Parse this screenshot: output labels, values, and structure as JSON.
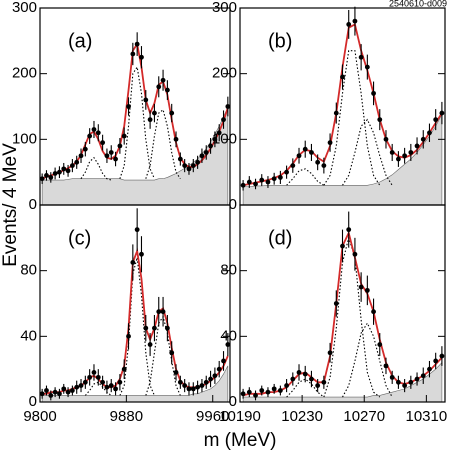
{
  "figure_id": "2540610-d009",
  "xlabel": "m (MeV)",
  "ylabel": "Events/ 4 MeV",
  "chart_data": [
    {
      "type": "errorbar",
      "label": "(a)",
      "xlim": [
        9800,
        9976
      ],
      "ylim": [
        0,
        300
      ],
      "yticks": [
        0,
        100,
        200,
        300
      ],
      "marker_color": "#000000",
      "fit_color": "#d42a2a",
      "background_color": "#d9d9d9",
      "component_color": "#000000",
      "x": [
        9802,
        9806,
        9810,
        9814,
        9818,
        9822,
        9826,
        9830,
        9834,
        9838,
        9842,
        9846,
        9850,
        9854,
        9858,
        9862,
        9866,
        9870,
        9874,
        9878,
        9882,
        9886,
        9890,
        9894,
        9898,
        9902,
        9906,
        9910,
        9914,
        9918,
        9922,
        9926,
        9930,
        9934,
        9938,
        9942,
        9946,
        9950,
        9954,
        9958,
        9962,
        9966,
        9970,
        9974
      ],
      "values": [
        40,
        45,
        42,
        48,
        50,
        55,
        52,
        60,
        65,
        75,
        85,
        105,
        115,
        110,
        95,
        75,
        80,
        70,
        90,
        105,
        150,
        230,
        245,
        225,
        160,
        130,
        140,
        180,
        190,
        175,
        140,
        100,
        70,
        60,
        55,
        60,
        65,
        75,
        80,
        90,
        100,
        110,
        130,
        150
      ],
      "errors": [
        8,
        8,
        8,
        9,
        9,
        9,
        9,
        10,
        10,
        11,
        11,
        12,
        13,
        13,
        12,
        11,
        11,
        11,
        12,
        13,
        14,
        17,
        18,
        17,
        15,
        14,
        14,
        16,
        16,
        15,
        14,
        12,
        10,
        10,
        9,
        10,
        10,
        11,
        11,
        12,
        12,
        13,
        14,
        15
      ],
      "fit": [
        40,
        43,
        45,
        47,
        50,
        53,
        56,
        60,
        66,
        76,
        92,
        108,
        112,
        100,
        82,
        72,
        70,
        75,
        90,
        120,
        175,
        235,
        245,
        210,
        160,
        140,
        155,
        183,
        188,
        168,
        130,
        95,
        72,
        62,
        58,
        58,
        62,
        68,
        76,
        86,
        98,
        112,
        128,
        148
      ],
      "background": [
        38,
        38,
        38,
        38,
        38,
        38,
        39,
        40,
        40,
        40,
        40,
        40,
        40,
        40,
        40,
        40,
        40,
        40,
        40,
        38,
        38,
        38,
        38,
        38,
        38,
        38,
        38,
        40,
        40,
        42,
        45,
        48,
        52,
        56,
        60,
        65,
        70,
        78,
        86,
        96,
        108,
        120,
        135,
        148
      ],
      "components": [
        {
          "x": [
            9838,
            9842,
            9846,
            9850,
            9854,
            9858,
            9862,
            9866
          ],
          "values": [
            40,
            50,
            66,
            72,
            62,
            48,
            40,
            38
          ]
        },
        {
          "x": [
            9874,
            9878,
            9882,
            9886,
            9890,
            9894,
            9898,
            9902,
            9906
          ],
          "values": [
            40,
            60,
            120,
            200,
            210,
            170,
            100,
            55,
            40
          ]
        },
        {
          "x": [
            9898,
            9902,
            9906,
            9910,
            9914,
            9918,
            9922,
            9926,
            9930
          ],
          "values": [
            40,
            60,
            105,
            140,
            145,
            120,
            80,
            50,
            40
          ]
        }
      ]
    },
    {
      "type": "errorbar",
      "label": "(b)",
      "xlim": [
        10190,
        10322
      ],
      "ylim": [
        0,
        300
      ],
      "yticks": [
        0,
        100,
        200,
        300
      ],
      "marker_color": "#000000",
      "fit_color": "#d42a2a",
      "background_color": "#d9d9d9",
      "component_color": "#000000",
      "x": [
        10192,
        10196,
        10200,
        10204,
        10208,
        10212,
        10216,
        10220,
        10224,
        10228,
        10232,
        10236,
        10240,
        10244,
        10248,
        10252,
        10256,
        10260,
        10264,
        10268,
        10272,
        10276,
        10280,
        10284,
        10288,
        10292,
        10296,
        10300,
        10304,
        10308,
        10312,
        10316,
        10320
      ],
      "values": [
        30,
        35,
        32,
        38,
        35,
        40,
        42,
        50,
        60,
        75,
        85,
        80,
        65,
        60,
        95,
        140,
        195,
        275,
        280,
        225,
        210,
        170,
        130,
        100,
        80,
        70,
        75,
        80,
        90,
        100,
        110,
        130,
        140
      ],
      "errors": [
        8,
        9,
        8,
        9,
        9,
        9,
        10,
        10,
        11,
        12,
        13,
        13,
        12,
        12,
        14,
        16,
        19,
        22,
        22,
        20,
        19,
        18,
        16,
        14,
        13,
        12,
        12,
        13,
        13,
        14,
        14,
        16,
        17
      ],
      "fit": [
        30,
        32,
        34,
        36,
        38,
        41,
        45,
        52,
        63,
        76,
        84,
        82,
        72,
        66,
        90,
        140,
        210,
        270,
        275,
        235,
        205,
        170,
        130,
        100,
        82,
        74,
        72,
        76,
        84,
        96,
        110,
        125,
        140
      ],
      "background": [
        28,
        28,
        29,
        29,
        30,
        30,
        30,
        30,
        30,
        30,
        30,
        30,
        30,
        30,
        30,
        30,
        30,
        30,
        30,
        30,
        30,
        32,
        35,
        40,
        46,
        54,
        62,
        70,
        80,
        92,
        105,
        120,
        138
      ],
      "components": [
        {
          "x": [
            10220,
            10224,
            10228,
            10232,
            10236,
            10240,
            10244
          ],
          "values": [
            30,
            40,
            52,
            55,
            48,
            36,
            30
          ]
        },
        {
          "x": [
            10244,
            10248,
            10252,
            10256,
            10260,
            10264,
            10268,
            10272,
            10276,
            10280
          ],
          "values": [
            30,
            45,
            90,
            170,
            235,
            235,
            170,
            90,
            45,
            30
          ]
        },
        {
          "x": [
            10256,
            10260,
            10264,
            10268,
            10272,
            10276,
            10280,
            10284,
            10288
          ],
          "values": [
            30,
            45,
            80,
            120,
            130,
            110,
            75,
            45,
            30
          ]
        }
      ]
    },
    {
      "type": "errorbar",
      "label": "(c)",
      "xlim": [
        9800,
        9976
      ],
      "ylim": [
        0,
        120
      ],
      "yticks": [
        0,
        40,
        80
      ],
      "xticks": [
        9800,
        9880,
        9960
      ],
      "marker_color": "#000000",
      "fit_color": "#d42a2a",
      "background_color": "#d9d9d9",
      "component_color": "#000000",
      "x": [
        9802,
        9806,
        9810,
        9814,
        9818,
        9822,
        9826,
        9830,
        9834,
        9838,
        9842,
        9846,
        9850,
        9854,
        9858,
        9862,
        9866,
        9870,
        9874,
        9878,
        9882,
        9886,
        9890,
        9894,
        9898,
        9902,
        9906,
        9910,
        9914,
        9918,
        9922,
        9926,
        9930,
        9934,
        9938,
        9942,
        9946,
        9950,
        9954,
        9958,
        9962,
        9966,
        9970,
        9974
      ],
      "values": [
        5,
        7,
        4,
        6,
        5,
        8,
        6,
        7,
        9,
        10,
        12,
        15,
        18,
        15,
        12,
        9,
        10,
        8,
        12,
        20,
        40,
        85,
        105,
        90,
        45,
        35,
        45,
        55,
        55,
        45,
        30,
        18,
        12,
        10,
        8,
        8,
        9,
        10,
        12,
        14,
        16,
        20,
        25,
        35
      ],
      "errors": [
        3,
        3,
        3,
        3,
        3,
        3,
        3,
        3,
        4,
        4,
        4,
        5,
        5,
        5,
        4,
        4,
        4,
        4,
        5,
        6,
        8,
        11,
        13,
        11,
        8,
        7,
        8,
        9,
        9,
        8,
        7,
        5,
        4,
        4,
        4,
        4,
        4,
        4,
        4,
        5,
        5,
        5,
        6,
        7
      ],
      "fit": [
        5,
        5,
        6,
        6,
        6,
        7,
        7,
        8,
        9,
        10,
        12,
        15,
        16,
        14,
        11,
        9,
        9,
        10,
        14,
        22,
        45,
        85,
        92,
        75,
        45,
        38,
        45,
        55,
        57,
        48,
        33,
        20,
        13,
        10,
        9,
        9,
        9,
        10,
        11,
        13,
        15,
        18,
        22,
        28
      ],
      "background": [
        4,
        4,
        4,
        4,
        4,
        4,
        4,
        4,
        4,
        4,
        4,
        4,
        4,
        4,
        4,
        4,
        4,
        4,
        4,
        4,
        4,
        4,
        4,
        4,
        4,
        4,
        4,
        4,
        4,
        4,
        4,
        4,
        4,
        4,
        4,
        5,
        5,
        6,
        7,
        8,
        10,
        13,
        17,
        22
      ],
      "components": [
        {
          "x": [
            9842,
            9846,
            9850,
            9854,
            9858,
            9862,
            9866
          ],
          "values": [
            4,
            7,
            11,
            12,
            9,
            6,
            4
          ]
        },
        {
          "x": [
            9874,
            9878,
            9882,
            9886,
            9890,
            9894,
            9898,
            9902,
            9906
          ],
          "values": [
            4,
            10,
            35,
            78,
            88,
            65,
            30,
            10,
            4
          ]
        },
        {
          "x": [
            9898,
            9902,
            9906,
            9910,
            9914,
            9918,
            9922,
            9926,
            9930
          ],
          "values": [
            4,
            12,
            30,
            48,
            52,
            42,
            25,
            10,
            4
          ]
        }
      ]
    },
    {
      "type": "errorbar",
      "label": "(d)",
      "xlim": [
        10190,
        10322
      ],
      "ylim": [
        0,
        120
      ],
      "yticks": [
        0,
        40,
        80
      ],
      "xticks": [
        10190,
        10230,
        10270,
        10310
      ],
      "marker_color": "#000000",
      "fit_color": "#d42a2a",
      "background_color": "#d9d9d9",
      "component_color": "#000000",
      "x": [
        10192,
        10196,
        10200,
        10204,
        10208,
        10212,
        10216,
        10220,
        10224,
        10228,
        10232,
        10236,
        10240,
        10244,
        10248,
        10252,
        10256,
        10260,
        10264,
        10268,
        10272,
        10276,
        10280,
        10284,
        10288,
        10292,
        10296,
        10300,
        10304,
        10308,
        10312,
        10316,
        10320
      ],
      "values": [
        5,
        6,
        4,
        7,
        6,
        8,
        7,
        10,
        14,
        18,
        17,
        14,
        10,
        12,
        30,
        60,
        95,
        105,
        90,
        70,
        68,
        55,
        35,
        22,
        15,
        12,
        10,
        12,
        14,
        16,
        20,
        25,
        28
      ],
      "errors": [
        3,
        3,
        3,
        3,
        3,
        3,
        3,
        4,
        4,
        5,
        5,
        5,
        4,
        4,
        6,
        8,
        10,
        11,
        10,
        9,
        9,
        8,
        7,
        5,
        4,
        4,
        4,
        4,
        4,
        5,
        5,
        5,
        6
      ],
      "fit": [
        4,
        5,
        5,
        5,
        6,
        6,
        7,
        9,
        13,
        17,
        18,
        15,
        12,
        12,
        28,
        60,
        95,
        103,
        88,
        72,
        66,
        55,
        38,
        24,
        16,
        12,
        11,
        12,
        14,
        16,
        19,
        23,
        27
      ],
      "background": [
        3,
        3,
        3,
        3,
        3,
        3,
        3,
        3,
        3,
        3,
        3,
        3,
        3,
        3,
        3,
        3,
        3,
        3,
        3,
        3,
        3,
        4,
        4,
        5,
        6,
        7,
        8,
        10,
        12,
        14,
        17,
        20,
        24
      ],
      "components": [
        {
          "x": [
            10220,
            10224,
            10228,
            10232,
            10236,
            10240,
            10244
          ],
          "values": [
            3,
            7,
            12,
            14,
            11,
            6,
            3
          ]
        },
        {
          "x": [
            10244,
            10248,
            10252,
            10256,
            10260,
            10264,
            10268,
            10272,
            10276,
            10280
          ],
          "values": [
            3,
            15,
            45,
            85,
            100,
            88,
            50,
            18,
            6,
            3
          ]
        },
        {
          "x": [
            10256,
            10260,
            10264,
            10268,
            10272,
            10276,
            10280,
            10284,
            10288
          ],
          "values": [
            3,
            10,
            25,
            42,
            48,
            40,
            25,
            10,
            3
          ]
        }
      ]
    }
  ]
}
